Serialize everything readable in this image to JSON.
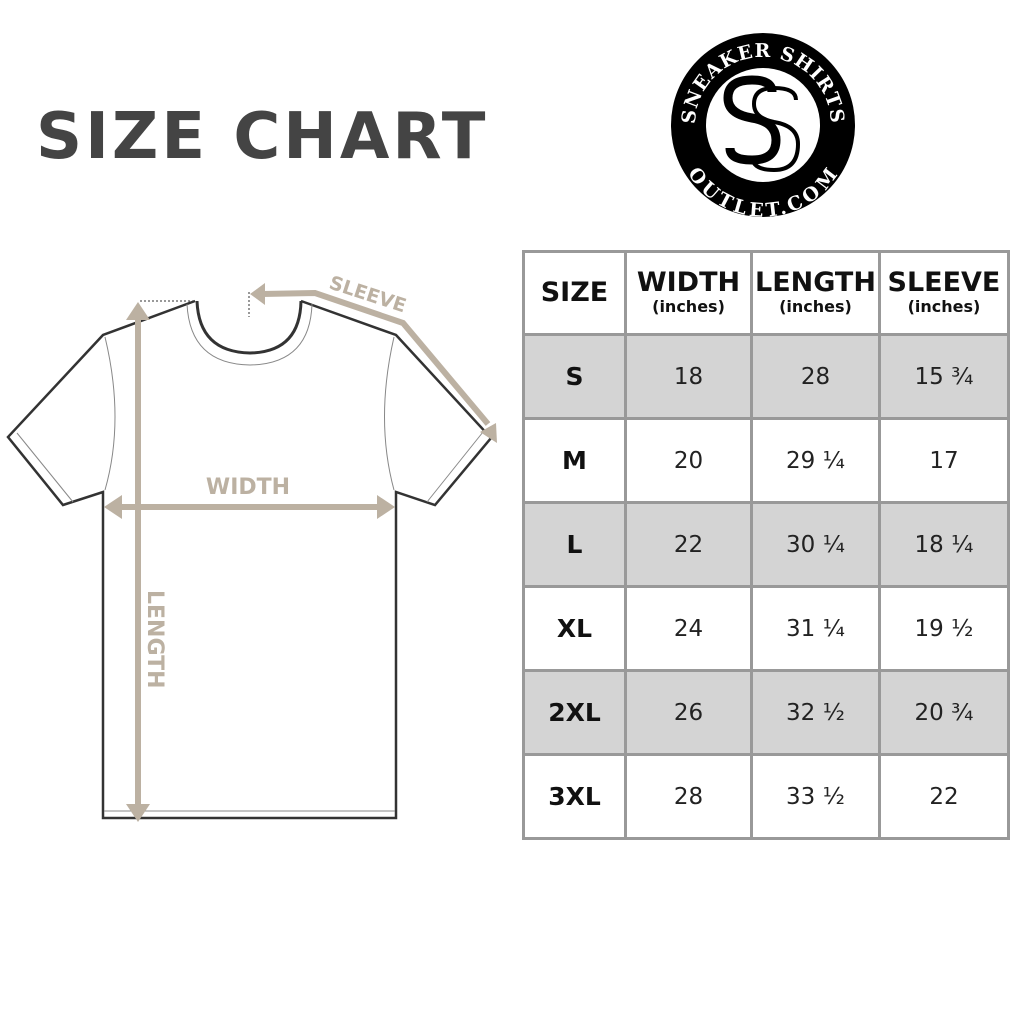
{
  "title": "SIZE CHART",
  "logo": {
    "top_text": "SNEAKER SHIRTS",
    "bottom_text": "OUTLET.COM",
    "monogram": "SS"
  },
  "diagram": {
    "sleeve_label": "SLEEVE",
    "width_label": "WIDTH",
    "length_label": "LENGTH",
    "accent_color": "#bcb1a2"
  },
  "table": {
    "headers": [
      {
        "label": "SIZE",
        "unit": ""
      },
      {
        "label": "WIDTH",
        "unit": "(inches)"
      },
      {
        "label": "LENGTH",
        "unit": "(inches)"
      },
      {
        "label": "SLEEVE",
        "unit": "(inches)"
      }
    ],
    "rows": [
      [
        "S",
        "18",
        "28",
        "15 ¾"
      ],
      [
        "M",
        "20",
        "29 ¼",
        "17"
      ],
      [
        "L",
        "22",
        "30 ¼",
        "18 ¼"
      ],
      [
        "XL",
        "24",
        "31 ¼",
        "19 ½"
      ],
      [
        "2XL",
        "26",
        "32 ½",
        "20 ¾"
      ],
      [
        "3XL",
        "28",
        "33 ½",
        "22"
      ]
    ]
  }
}
